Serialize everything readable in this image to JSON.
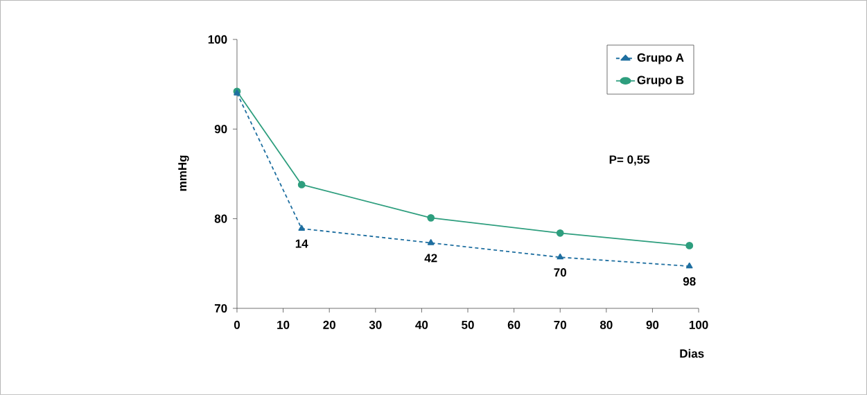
{
  "chart_data": {
    "type": "line",
    "xlabel": "Dias",
    "ylabel": "mmHg",
    "x": [
      0,
      14,
      42,
      70,
      98
    ],
    "series": [
      {
        "name": "Grupo A",
        "color": "#1f6fa0",
        "values": [
          94.0,
          78.9,
          77.3,
          75.7,
          74.7
        ],
        "marker": "triangle",
        "line_style": "dashed"
      },
      {
        "name": "Grupo B",
        "color": "#2e9e7e",
        "values": [
          94.2,
          83.8,
          80.1,
          78.4,
          77.0
        ],
        "marker": "circle",
        "line_style": "solid"
      }
    ],
    "xlim": [
      0,
      100
    ],
    "xticks": [
      0,
      10,
      20,
      30,
      40,
      50,
      60,
      70,
      80,
      90,
      100
    ],
    "ylim": [
      70,
      100
    ],
    "yticks": [
      70,
      80,
      90,
      100
    ],
    "grid": false,
    "legend": "top right",
    "annotations": [
      "P= 0,55",
      {
        "text": "14",
        "x": 14,
        "y": 78.9
      },
      {
        "text": "42",
        "x": 42,
        "y": 77.3
      },
      {
        "text": "70",
        "x": 70,
        "y": 75.7
      },
      {
        "text": "98",
        "x": 98,
        "y": 74.7
      }
    ]
  }
}
